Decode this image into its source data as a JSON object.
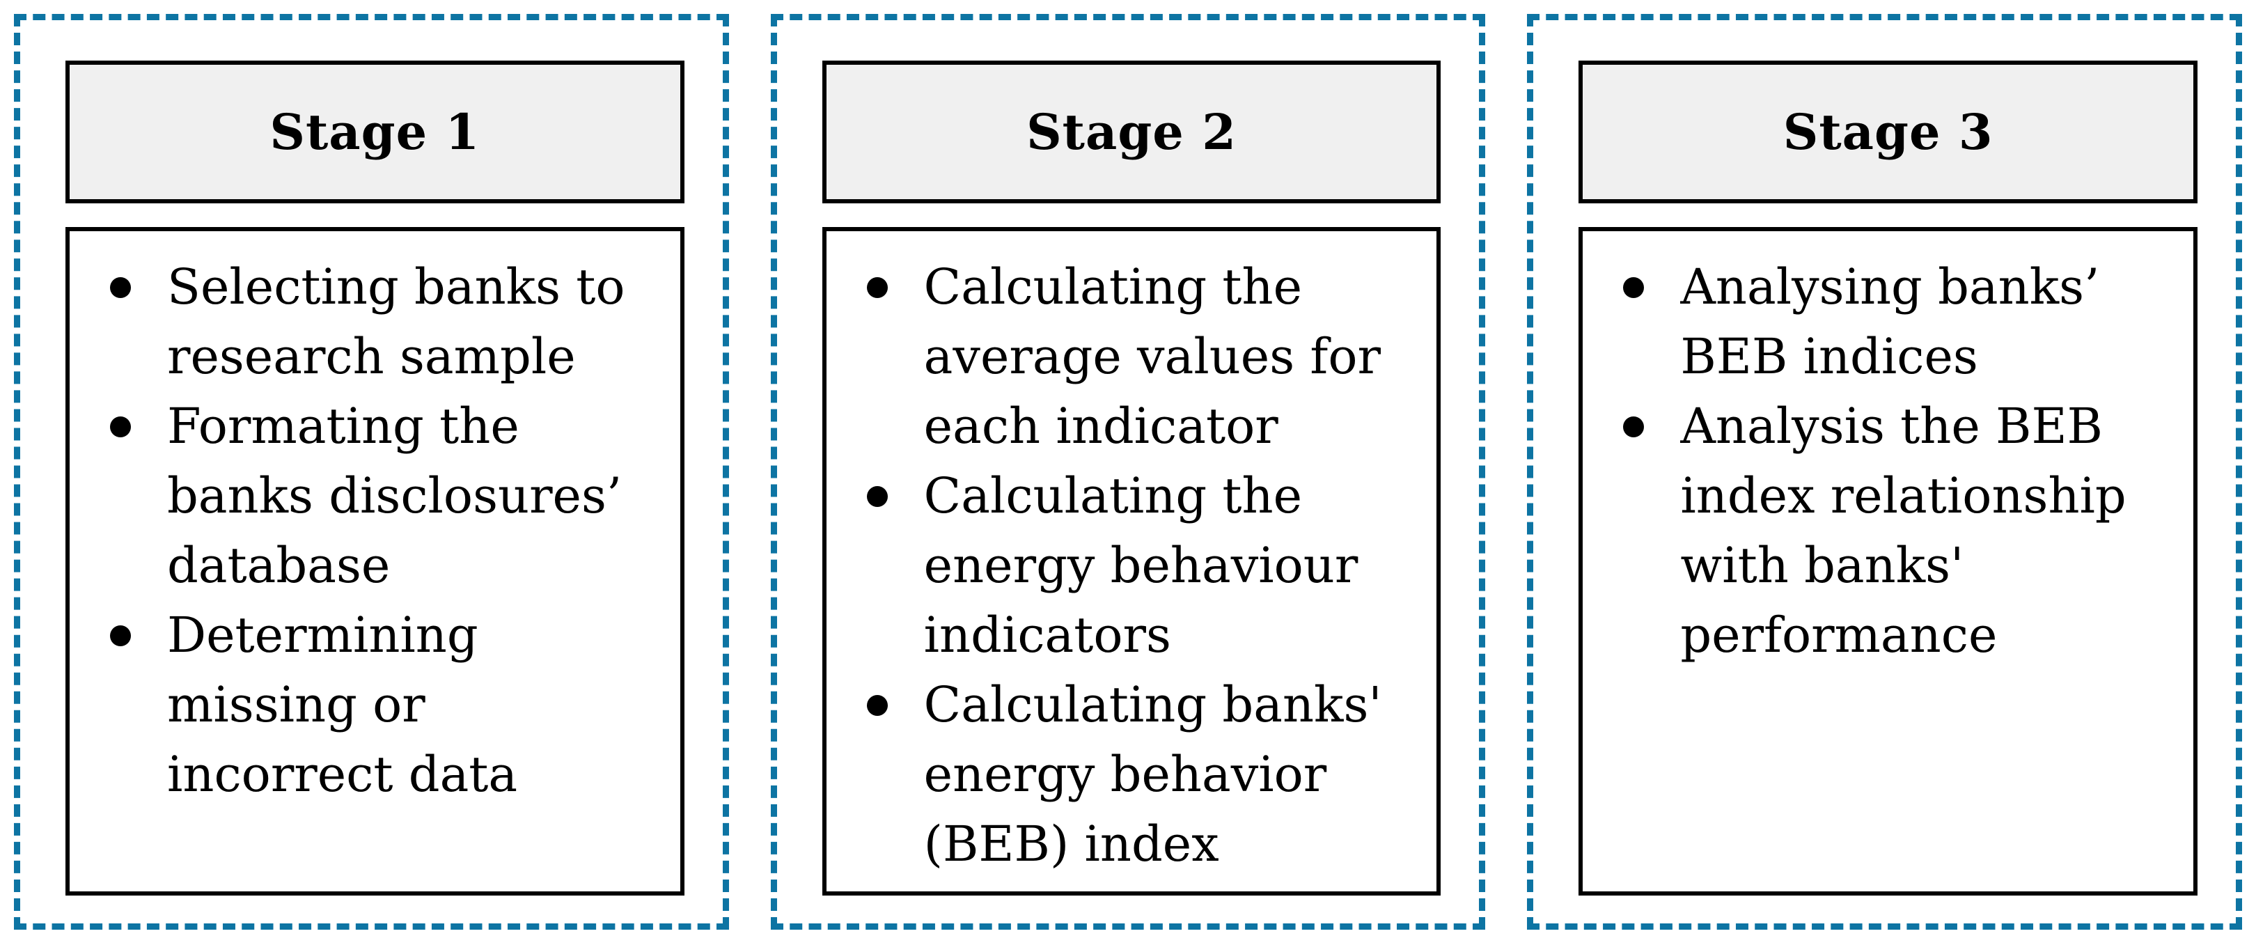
{
  "figure": {
    "accent_color": "#0d74a3",
    "header_bg": "#f0f0f0",
    "stages": [
      {
        "title": "Stage 1",
        "bullets": [
          "Selecting banks to research sample",
          "Formating the banks disclosures’ database",
          "Determining missing or incorrect data"
        ]
      },
      {
        "title": "Stage 2",
        "bullets": [
          "Calculating the average values for each indicator",
          "Calculating the energy behaviour indicators",
          "Calculating banks' energy behavior (BEB) index"
        ]
      },
      {
        "title": "Stage 3",
        "bullets": [
          "Analysing banks’ BEB indices",
          "Analysis the BEB index relationship with banks' performance"
        ]
      }
    ]
  }
}
